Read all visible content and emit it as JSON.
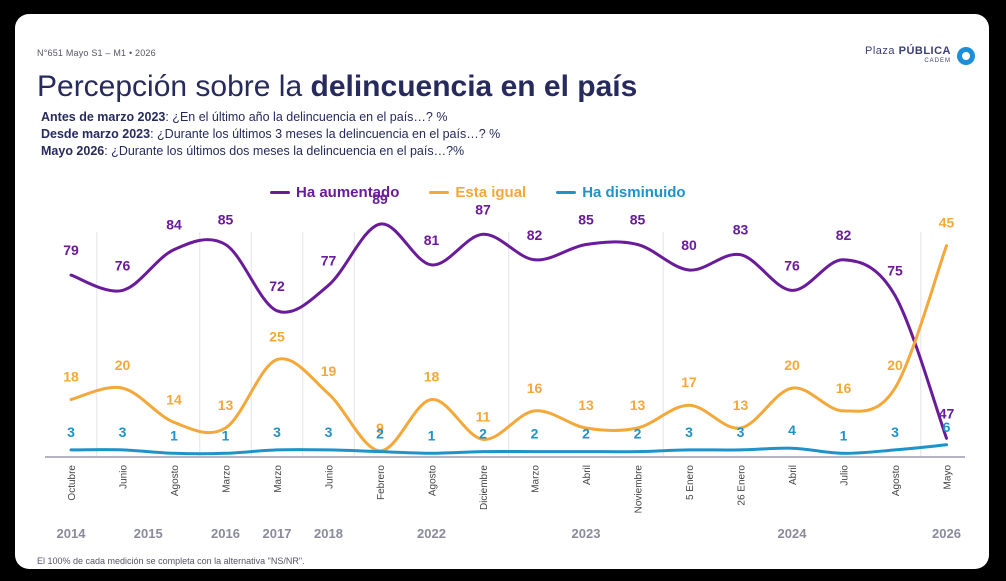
{
  "header": {
    "meta": "N°651 Mayo S1 – M1 • 2026",
    "brand_plaza": "Plaza",
    "brand_publica": "PÚBLICA",
    "brand_sub": "CADEM",
    "title_regular": "Percepción sobre la",
    "title_bold": "delincuencia en el país"
  },
  "questions": [
    {
      "bold": "Antes de marzo 2023",
      "text": ": ¿En el último año la delincuencia en el país…? %"
    },
    {
      "bold": "Desde marzo 2023",
      "text": ": ¿Durante los últimos 3 meses la delincuencia en el país…? %"
    },
    {
      "bold": "Mayo 2026",
      "text": ": ¿Durante los últimos dos meses la delincuencia en el país…?%"
    }
  ],
  "footnote": "El 100% de cada medición se completa con la alternativa \"NS/NR\".",
  "colors": {
    "aumentado": "#6a1b9a",
    "igual": "#f5a83a",
    "disminuido": "#1f93c9",
    "title": "#262a5c"
  },
  "chart_data": {
    "type": "line",
    "categories": [
      "Octubre",
      "Junio",
      "Agosto",
      "Marzo",
      "Marzo",
      "Junio",
      "Febrero",
      "Agosto",
      "Diciembre",
      "Marzo",
      "Abril",
      "Noviembre",
      "5 Enero",
      "26 Enero",
      "Abril",
      "Julio",
      "Agosto",
      "Mayo"
    ],
    "years": [
      {
        "label": "2014",
        "from": 0,
        "to": 0
      },
      {
        "label": "2015",
        "from": 1,
        "to": 2
      },
      {
        "label": "2016",
        "from": 3,
        "to": 3
      },
      {
        "label": "2017",
        "from": 4,
        "to": 4
      },
      {
        "label": "2018",
        "from": 5,
        "to": 5
      },
      {
        "label": "2022",
        "from": 6,
        "to": 8
      },
      {
        "label": "2023",
        "from": 9,
        "to": 11
      },
      {
        "label": "2024",
        "from": 12,
        "to": 16
      },
      {
        "label": "2026",
        "from": 17,
        "to": 17
      }
    ],
    "series": [
      {
        "name": "Ha aumentado",
        "color": "#6a1b9a",
        "values": [
          79,
          76,
          84,
          85,
          72,
          77,
          89,
          81,
          87,
          82,
          85,
          85,
          80,
          83,
          76,
          82,
          75,
          47
        ]
      },
      {
        "name": "Esta igual",
        "color": "#f5a83a",
        "values": [
          18,
          20,
          14,
          13,
          25,
          19,
          9,
          18,
          11,
          16,
          13,
          13,
          17,
          13,
          20,
          16,
          20,
          45
        ]
      },
      {
        "name": "Ha disminuido",
        "color": "#1f93c9",
        "values": [
          3,
          3,
          1,
          1,
          3,
          3,
          2,
          1,
          2,
          2,
          2,
          2,
          3,
          3,
          4,
          1,
          3,
          6
        ]
      }
    ],
    "ylim": [
      0,
      100
    ],
    "legend": "top"
  }
}
